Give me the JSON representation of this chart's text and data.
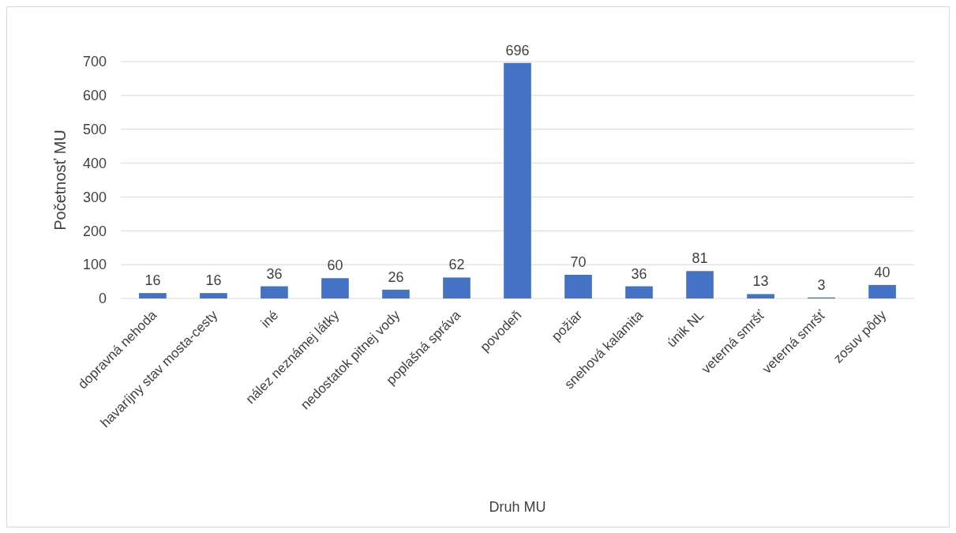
{
  "chart_data": {
    "type": "bar",
    "xlabel": "Druh MU",
    "ylabel": "Početnosť MU",
    "categories": [
      "dopravná nehoda",
      "havaríjny stav mosta-cesty",
      "iné",
      "nález neznámej látky",
      "nedostatok pitnej vody",
      "poplašná správa",
      "povodeň",
      "požiar",
      "snehová kalamita",
      "únik NL",
      "veterná smršť",
      "veterná smršť",
      "zosuv pôdy"
    ],
    "values": [
      16,
      16,
      36,
      60,
      26,
      62,
      696,
      70,
      36,
      81,
      13,
      3,
      40
    ],
    "color": "#4472c4",
    "ylim": [
      0,
      700
    ],
    "yticks": [
      0,
      100,
      200,
      300,
      400,
      500,
      600,
      700
    ],
    "grid": "y",
    "data_labels": true
  }
}
